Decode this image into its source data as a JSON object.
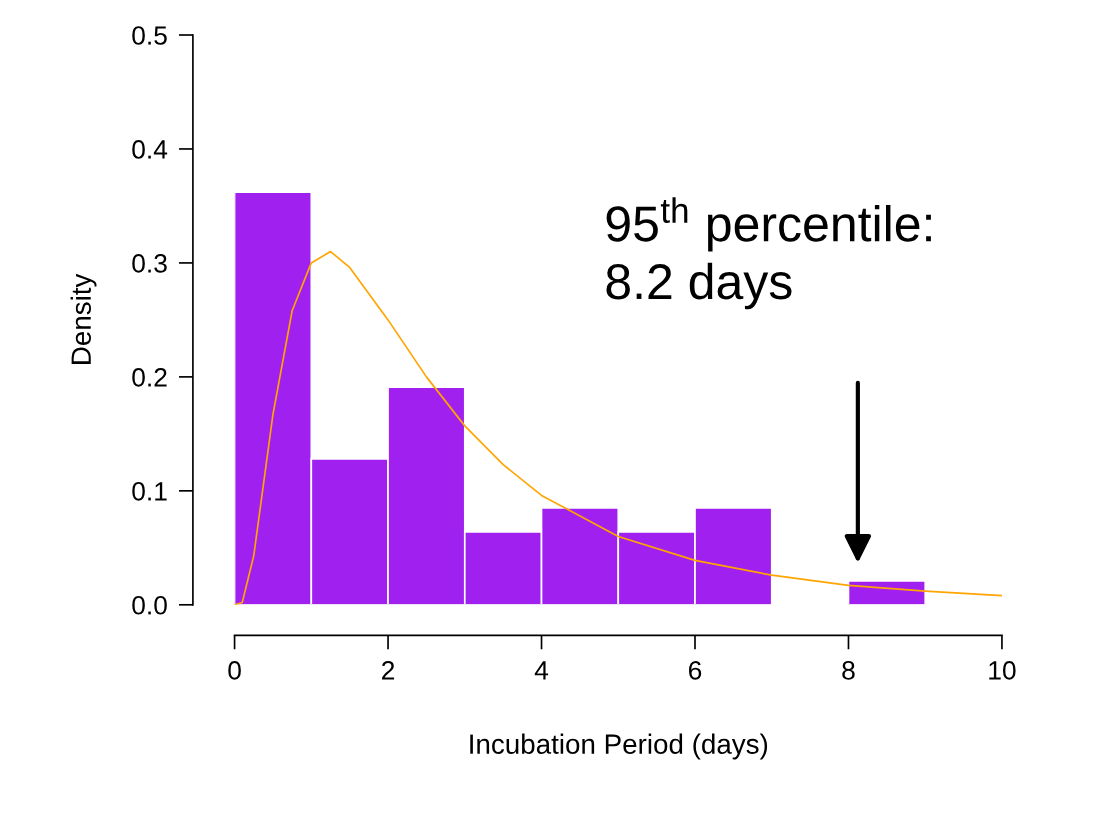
{
  "chart_data": {
    "type": "histogram",
    "xlabel": "Incubation Period (days)",
    "ylabel": "Density",
    "bins": [
      0,
      1,
      2,
      3,
      4,
      5,
      6,
      7,
      8,
      9
    ],
    "values": [
      0.362,
      0.128,
      0.191,
      0.064,
      0.085,
      0.064,
      0.085,
      0,
      0.021
    ],
    "color": "#a020f0",
    "series": [
      {
        "type": "line",
        "color": "#ffa500",
        "x": [
          0,
          0.1,
          0.25,
          0.5,
          0.75,
          1,
          1.25,
          1.5,
          2,
          2.5,
          3,
          3.5,
          4,
          5,
          6,
          7,
          8,
          9,
          10
        ],
        "values": [
          0,
          0.002,
          0.043,
          0.167,
          0.258,
          0.3,
          0.31,
          0.296,
          0.25,
          0.2,
          0.157,
          0.123,
          0.096,
          0.06,
          0.039,
          0.026,
          0.017,
          0.012,
          0.008
        ]
      }
    ],
    "xlim": [
      0,
      10
    ],
    "xticks": [
      0,
      2,
      4,
      6,
      8,
      10
    ],
    "ylim": [
      0,
      0.5
    ],
    "yticks": [
      {
        "value": 0,
        "label": "0.0"
      },
      0.1,
      0.2,
      0.3,
      0.4,
      0.5
    ],
    "grid": false,
    "annotations": [
      "95$^{th}$ percentile:\n8.2 days"
    ]
  }
}
